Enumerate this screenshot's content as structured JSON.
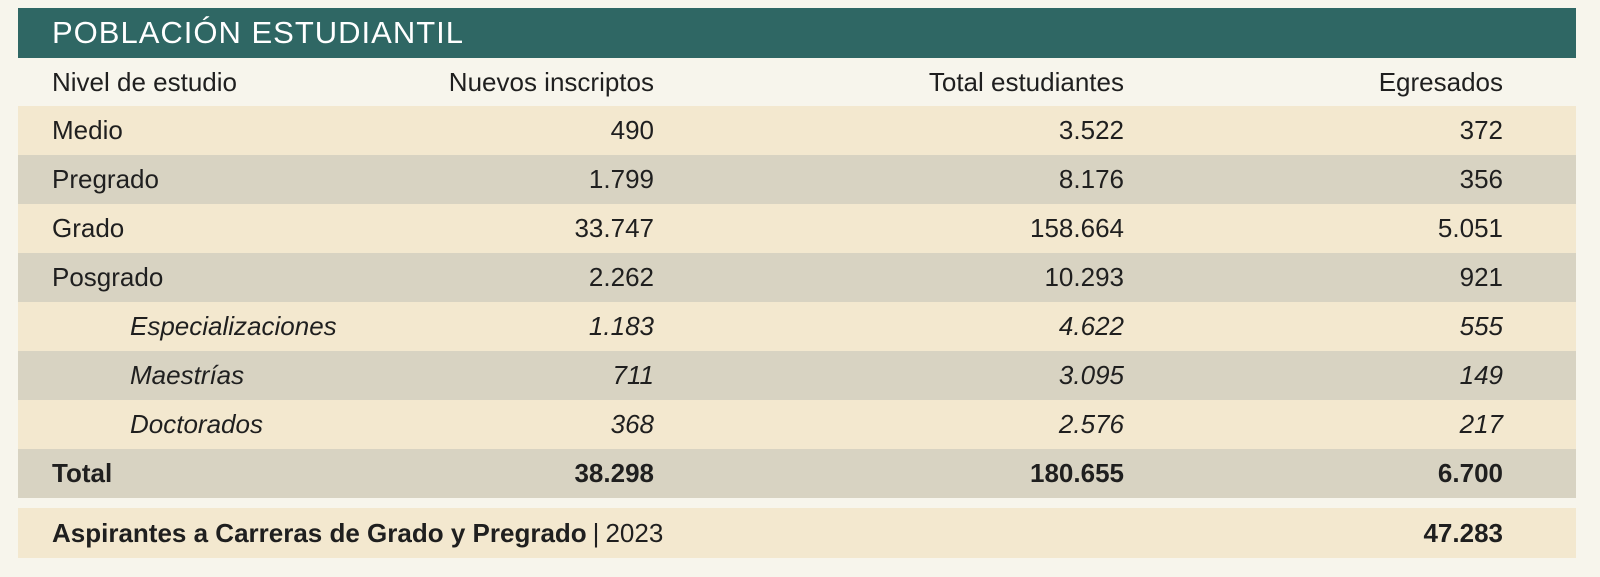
{
  "title": "POBLACIÓN ESTUDIANTIL",
  "columns": [
    "Nivel de estudio",
    "Nuevos inscriptos",
    "Total estudiantes",
    "Egresados"
  ],
  "rows": [
    {
      "label": "Medio",
      "nuevos": "490",
      "total": "3.522",
      "egresados": "372"
    },
    {
      "label": "Pregrado",
      "nuevos": "1.799",
      "total": "8.176",
      "egresados": "356"
    },
    {
      "label": "Grado",
      "nuevos": "33.747",
      "total": "158.664",
      "egresados": "5.051"
    },
    {
      "label": "Posgrado",
      "nuevos": "2.262",
      "total": "10.293",
      "egresados": "921"
    },
    {
      "label": "Especializaciones",
      "nuevos": "1.183",
      "total": "4.622",
      "egresados": "555"
    },
    {
      "label": "Maestrías",
      "nuevos": "711",
      "total": "3.095",
      "egresados": "149"
    },
    {
      "label": "Doctorados",
      "nuevos": "368",
      "total": "2.576",
      "egresados": "217"
    }
  ],
  "total": {
    "label": "Total",
    "nuevos": "38.298",
    "total": "180.655",
    "egresados": "6.700"
  },
  "aspirantes": {
    "label": "Aspirantes a Carreras de Grado y Pregrado",
    "separator": "|",
    "year": "2023",
    "value": "47.283"
  },
  "colors": {
    "title_bg": "#2f6764",
    "row_cream": "#f3e8cf",
    "row_gray": "#d8d3c2",
    "page_bg": "#f7f5ec"
  }
}
